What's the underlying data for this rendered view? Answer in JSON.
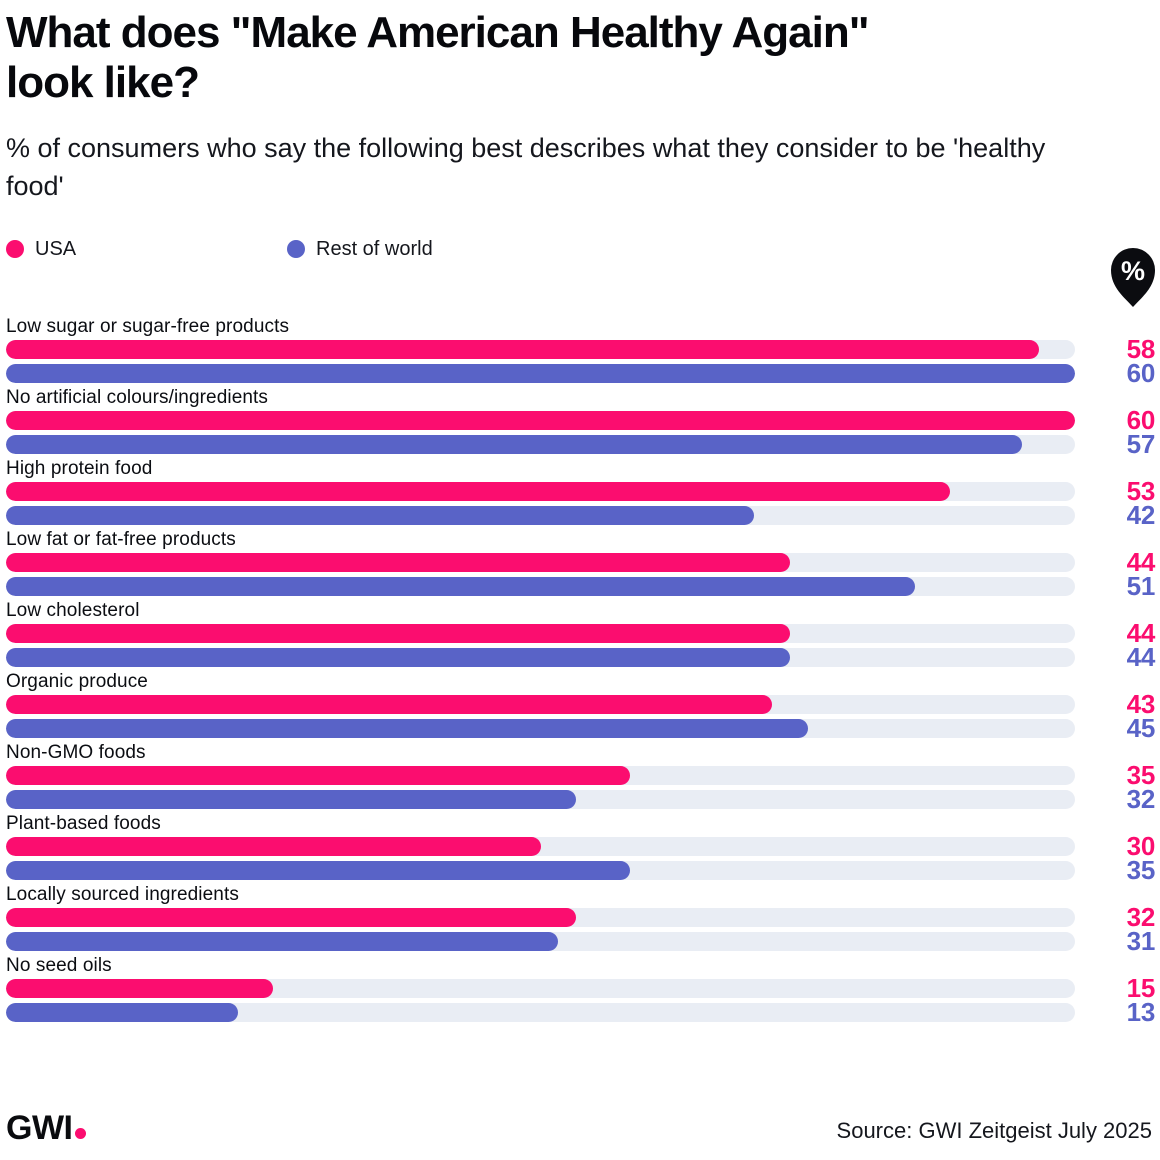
{
  "header": {
    "title": "What does \"Make American Healthy Again\" look like?",
    "subtitle": "% of consumers who say the following best describes what they consider to be 'healthy food'"
  },
  "legend": [
    {
      "label": "USA",
      "color": "#FB0D6F"
    },
    {
      "label": "Rest of world",
      "color": "#5963C7"
    }
  ],
  "unit_badge": "%",
  "chart_data": {
    "type": "bar",
    "orientation": "horizontal",
    "title": "What does \"Make American Healthy Again\" look like?",
    "xlabel": "",
    "ylabel": "",
    "scale_max": 60,
    "grid": false,
    "legend_position": "top",
    "track_color": "#E9EDF4",
    "categories": [
      "Low sugar or sugar-free products",
      "No artificial colours/ingredients",
      "High protein food",
      "Low fat or fat-free products",
      "Low cholesterol",
      "Organic produce",
      "Non-GMO foods",
      "Plant-based foods",
      "Locally sourced ingredients",
      "No seed oils"
    ],
    "series": [
      {
        "name": "USA",
        "color": "#FB0D6F",
        "values": [
          58,
          60,
          53,
          44,
          44,
          43,
          35,
          30,
          32,
          15
        ]
      },
      {
        "name": "Rest of world",
        "color": "#5963C7",
        "values": [
          60,
          57,
          42,
          51,
          44,
          45,
          32,
          35,
          31,
          13
        ]
      }
    ]
  },
  "colors": {
    "usa_pink": "#FB0D6F",
    "world_blue": "#5963C7",
    "bar_track": "#E9EDF4",
    "pin_black": "#0B0C10"
  },
  "footer": {
    "logo_text": "GWI",
    "source": "Source: GWI Zeitgeist July 2025"
  }
}
